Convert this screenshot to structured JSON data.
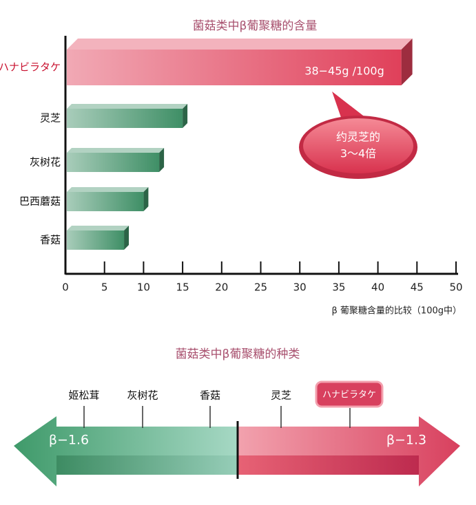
{
  "chart_data": {
    "type": "bar",
    "orientation": "horizontal",
    "title": "菌菇类中β葡聚糖的含量",
    "categories": [
      "ハナビラタケ",
      "灵芝",
      "灰树花",
      "巴西蘑菇",
      "香菇"
    ],
    "values": [
      43,
      15,
      12,
      10,
      7.5
    ],
    "colors": [
      "#e0405a",
      "#3f8f66",
      "#3f8f66",
      "#3f8f66",
      "#3f8f66"
    ],
    "xlim": [
      0,
      50
    ],
    "xticks": [
      0,
      5,
      10,
      15,
      20,
      25,
      30,
      35,
      40,
      45,
      50
    ],
    "xlabel": "β 葡聚糖含量的比较（100g中）",
    "annotations": [
      "38−45g /100g",
      "约灵芝的",
      "3～4倍"
    ]
  },
  "diagram": {
    "title": "菌菇类中β葡聚糖的种类",
    "left": "β−1.6",
    "right": "β−1.3",
    "markers": [
      "姬松茸",
      "灰树花",
      "香菇",
      "灵芝",
      "ハナビラタケ"
    ]
  }
}
